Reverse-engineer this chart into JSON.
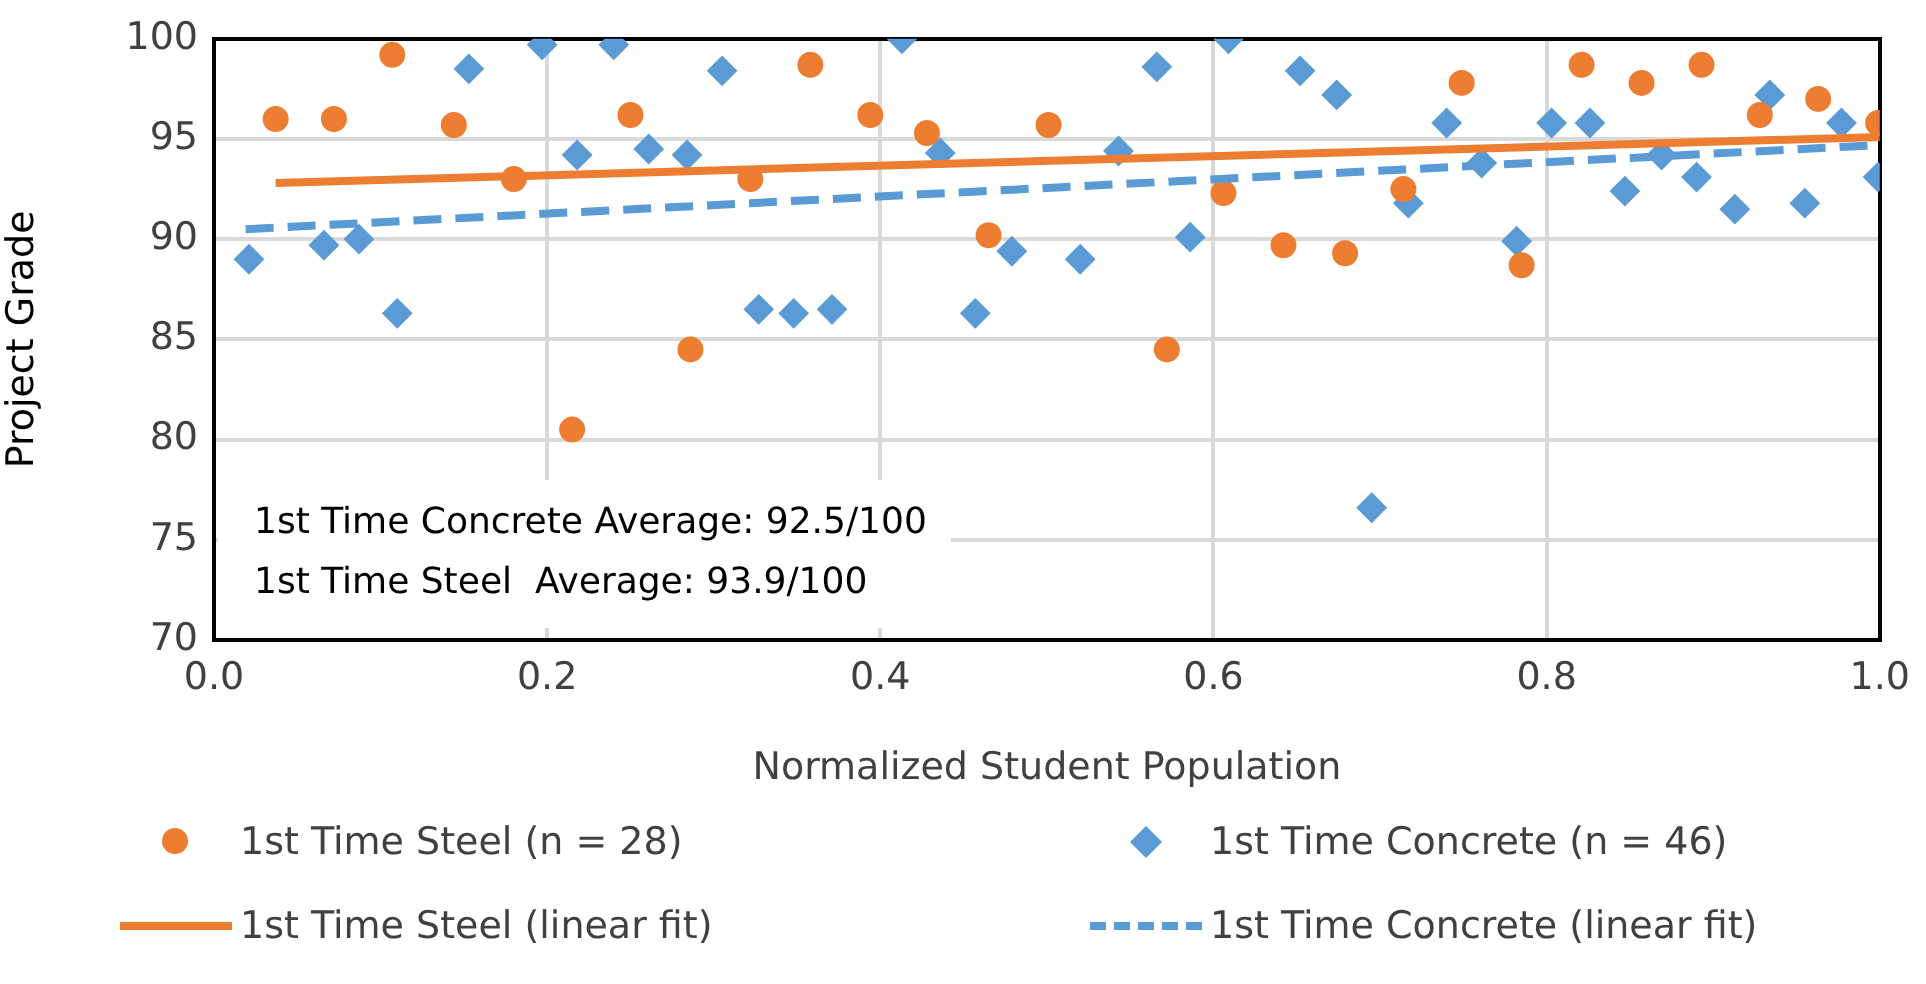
{
  "chart_data": {
    "type": "scatter",
    "xlabel": "Normalized Student Population",
    "ylabel": "Project Grade",
    "xlim": [
      0,
      1
    ],
    "xticks": [
      {
        "value": 0,
        "label": "0.0"
      },
      {
        "value": 0.2,
        "label": "0.2"
      },
      {
        "value": 0.4,
        "label": "0.4"
      },
      {
        "value": 0.6,
        "label": "0.6"
      },
      {
        "value": 0.8,
        "label": "0.8"
      },
      {
        "value": 1,
        "label": "1.0"
      }
    ],
    "ylim": [
      70,
      100
    ],
    "yticks": [
      70,
      75,
      80,
      85,
      90,
      95,
      100
    ],
    "grid": true,
    "legend": "bottom",
    "annotations": [
      "1st Time Concrete Average: 92.5/100",
      "1st Time Steel  Average: 93.9/100"
    ],
    "series": [
      {
        "name": "1st Time Steel (n = 28)",
        "marker": "circle",
        "color": "#ed7d31",
        "x": [
          0.037,
          0.072,
          0.107,
          0.144,
          0.18,
          0.215,
          0.25,
          0.286,
          0.322,
          0.358,
          0.394,
          0.428,
          0.465,
          0.501,
          0.572,
          0.606,
          0.642,
          0.679,
          0.714,
          0.749,
          0.785,
          0.821,
          0.857,
          0.893,
          0.928,
          0.963,
          0.999
        ],
        "values": [
          96,
          96,
          99.2,
          95.7,
          93,
          80.5,
          96.2,
          84.5,
          93,
          98.7,
          96.2,
          95.3,
          90.2,
          95.7,
          84.5,
          92.3,
          89.7,
          89.3,
          92.5,
          97.8,
          88.7,
          98.7,
          97.8,
          98.7,
          96.2,
          97,
          95.8
        ]
      },
      {
        "name": "1st Time Concrete (n = 46)",
        "marker": "diamond",
        "color": "#5b9bd5",
        "x": [
          0.021,
          0.066,
          0.087,
          0.11,
          0.153,
          0.197,
          0.218,
          0.24,
          0.261,
          0.284,
          0.305,
          0.327,
          0.348,
          0.371,
          0.413,
          0.436,
          0.457,
          0.479,
          0.52,
          0.543,
          0.566,
          0.586,
          0.609,
          0.652,
          0.674,
          0.695,
          0.717,
          0.74,
          0.761,
          0.782,
          0.803,
          0.826,
          0.847,
          0.869,
          0.89,
          0.913,
          0.934,
          0.955,
          0.977,
          0.999
        ],
        "values": [
          89,
          89.7,
          90,
          86.3,
          98.5,
          99.7,
          94.2,
          99.7,
          94.5,
          94.2,
          98.4,
          86.5,
          86.3,
          86.5,
          100,
          94.3,
          86.3,
          89.4,
          89,
          94.4,
          98.6,
          90.1,
          100,
          98.4,
          97.2,
          76.6,
          91.8,
          95.8,
          93.8,
          89.9,
          95.8,
          95.8,
          92.4,
          94.2,
          93.1,
          91.5,
          97.2,
          91.8,
          95.8,
          93.1
        ]
      },
      {
        "name": "1st Time Steel (linear fit)",
        "type": "line",
        "marker": "none",
        "line_style": "solid",
        "color": "#ed7d31",
        "x": [
          0.037,
          1
        ],
        "values": [
          92.8,
          95.1
        ]
      },
      {
        "name": "1st Time Concrete (linear fit)",
        "type": "line",
        "marker": "none",
        "line_style": "dashed",
        "color": "#5b9bd5",
        "x": [
          0.019,
          1
        ],
        "values": [
          90.5,
          94.7
        ]
      }
    ]
  }
}
